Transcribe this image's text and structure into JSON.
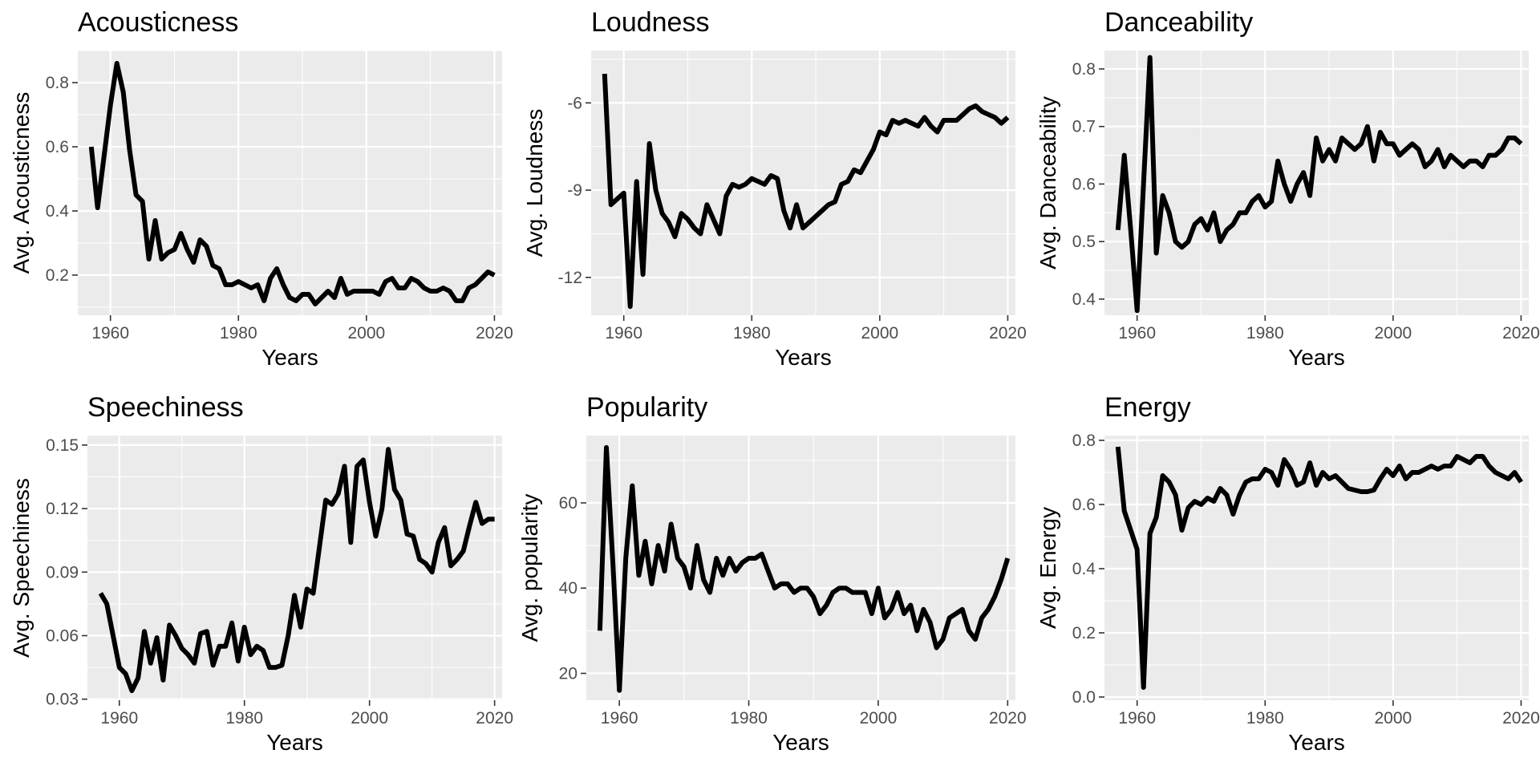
{
  "chart_data": [
    {
      "type": "line",
      "title": "Acousticness",
      "xlabel": "Years",
      "ylabel": "Avg. Acousticness",
      "xlim": [
        1954.9,
        2021.2
      ],
      "ylim": [
        0.075,
        0.9
      ],
      "x_ticks": [
        1960,
        1980,
        2000,
        2020
      ],
      "y_ticks": [
        0.2,
        0.4,
        0.6,
        0.8
      ],
      "y_tick_labels": [
        "0.2",
        "0.4",
        "0.6",
        "0.8"
      ],
      "grid": true,
      "line_color": "#000000",
      "x": [
        1957,
        1958,
        1959,
        1960,
        1961,
        1962,
        1963,
        1964,
        1965,
        1966,
        1967,
        1968,
        1969,
        1970,
        1971,
        1972,
        1973,
        1974,
        1975,
        1976,
        1977,
        1978,
        1979,
        1980,
        1981,
        1982,
        1983,
        1984,
        1985,
        1986,
        1987,
        1988,
        1989,
        1990,
        1991,
        1992,
        1993,
        1994,
        1995,
        1996,
        1997,
        1998,
        1999,
        2000,
        2001,
        2002,
        2003,
        2004,
        2005,
        2006,
        2007,
        2008,
        2009,
        2010,
        2011,
        2012,
        2013,
        2014,
        2015,
        2016,
        2017,
        2018,
        2019,
        2020
      ],
      "y": [
        0.6,
        0.41,
        0.57,
        0.73,
        0.86,
        0.77,
        0.59,
        0.45,
        0.43,
        0.25,
        0.37,
        0.25,
        0.27,
        0.28,
        0.33,
        0.28,
        0.24,
        0.31,
        0.29,
        0.23,
        0.22,
        0.17,
        0.17,
        0.18,
        0.17,
        0.16,
        0.17,
        0.12,
        0.19,
        0.22,
        0.17,
        0.13,
        0.12,
        0.14,
        0.14,
        0.11,
        0.13,
        0.15,
        0.13,
        0.19,
        0.14,
        0.15,
        0.15,
        0.15,
        0.15,
        0.14,
        0.18,
        0.19,
        0.16,
        0.16,
        0.19,
        0.18,
        0.16,
        0.15,
        0.15,
        0.16,
        0.15,
        0.12,
        0.12,
        0.16,
        0.17,
        0.19,
        0.21,
        0.2
      ]
    },
    {
      "type": "line",
      "title": "Loudness",
      "xlabel": "Years",
      "ylabel": "Avg. Loudness",
      "xlim": [
        1954.9,
        2021.2
      ],
      "ylim": [
        -13.3,
        -4.2
      ],
      "x_ticks": [
        1960,
        1980,
        2000,
        2020
      ],
      "y_ticks": [
        -12,
        -9,
        -6
      ],
      "y_tick_labels": [
        "-12",
        "-9",
        "-6"
      ],
      "grid": true,
      "line_color": "#000000",
      "x": [
        1957,
        1958,
        1959,
        1960,
        1961,
        1962,
        1963,
        1964,
        1965,
        1966,
        1967,
        1968,
        1969,
        1970,
        1971,
        1972,
        1973,
        1974,
        1975,
        1976,
        1977,
        1978,
        1979,
        1980,
        1981,
        1982,
        1983,
        1984,
        1985,
        1986,
        1987,
        1988,
        1989,
        1990,
        1991,
        1992,
        1993,
        1994,
        1995,
        1996,
        1997,
        1998,
        1999,
        2000,
        2001,
        2002,
        2003,
        2004,
        2005,
        2006,
        2007,
        2008,
        2009,
        2010,
        2011,
        2012,
        2013,
        2014,
        2015,
        2016,
        2017,
        2018,
        2019,
        2020
      ],
      "y": [
        -5.0,
        -9.5,
        -9.3,
        -9.1,
        -13.0,
        -8.7,
        -11.9,
        -7.4,
        -9.0,
        -9.8,
        -10.1,
        -10.6,
        -9.8,
        -10.0,
        -10.3,
        -10.5,
        -9.5,
        -10.0,
        -10.5,
        -9.2,
        -8.8,
        -8.9,
        -8.8,
        -8.6,
        -8.7,
        -8.8,
        -8.5,
        -8.6,
        -9.7,
        -10.3,
        -9.5,
        -10.3,
        -10.1,
        -9.9,
        -9.7,
        -9.5,
        -9.4,
        -8.8,
        -8.7,
        -8.3,
        -8.4,
        -8.0,
        -7.6,
        -7.0,
        -7.1,
        -6.6,
        -6.7,
        -6.6,
        -6.7,
        -6.8,
        -6.5,
        -6.8,
        -7.0,
        -6.6,
        -6.6,
        -6.6,
        -6.4,
        -6.2,
        -6.1,
        -6.3,
        -6.4,
        -6.5,
        -6.7,
        -6.5
      ]
    },
    {
      "type": "line",
      "title": "Danceability",
      "xlabel": "Years",
      "ylabel": "Avg. Danceability",
      "xlim": [
        1954.9,
        2021.2
      ],
      "ylim": [
        0.372,
        0.832
      ],
      "x_ticks": [
        1960,
        1980,
        2000,
        2020
      ],
      "y_ticks": [
        0.4,
        0.5,
        0.6,
        0.7,
        0.8
      ],
      "y_tick_labels": [
        "0.4",
        "0.5",
        "0.6",
        "0.7",
        "0.8"
      ],
      "grid": true,
      "line_color": "#000000",
      "x": [
        1957,
        1958,
        1959,
        1960,
        1961,
        1962,
        1963,
        1964,
        1965,
        1966,
        1967,
        1968,
        1969,
        1970,
        1971,
        1972,
        1973,
        1974,
        1975,
        1976,
        1977,
        1978,
        1979,
        1980,
        1981,
        1982,
        1983,
        1984,
        1985,
        1986,
        1987,
        1988,
        1989,
        1990,
        1991,
        1992,
        1993,
        1994,
        1995,
        1996,
        1997,
        1998,
        1999,
        2000,
        2001,
        2002,
        2003,
        2004,
        2005,
        2006,
        2007,
        2008,
        2009,
        2010,
        2011,
        2012,
        2013,
        2014,
        2015,
        2016,
        2017,
        2018,
        2019,
        2020
      ],
      "y": [
        0.52,
        0.65,
        0.52,
        0.38,
        0.6,
        0.82,
        0.48,
        0.58,
        0.55,
        0.5,
        0.49,
        0.5,
        0.53,
        0.54,
        0.52,
        0.55,
        0.5,
        0.52,
        0.53,
        0.55,
        0.55,
        0.57,
        0.58,
        0.56,
        0.57,
        0.64,
        0.6,
        0.57,
        0.6,
        0.62,
        0.58,
        0.68,
        0.64,
        0.66,
        0.64,
        0.68,
        0.67,
        0.66,
        0.67,
        0.7,
        0.64,
        0.69,
        0.67,
        0.67,
        0.65,
        0.66,
        0.67,
        0.66,
        0.63,
        0.64,
        0.66,
        0.63,
        0.65,
        0.64,
        0.63,
        0.64,
        0.64,
        0.63,
        0.65,
        0.65,
        0.66,
        0.68,
        0.68,
        0.67
      ]
    },
    {
      "type": "line",
      "title": "Speechiness",
      "xlabel": "Years",
      "ylabel": "Avg. Speechiness",
      "xlim": [
        1954.9,
        2021.2
      ],
      "ylim": [
        0.0295,
        0.1545
      ],
      "x_ticks": [
        1960,
        1980,
        2000,
        2020
      ],
      "y_ticks": [
        0.03,
        0.06,
        0.09,
        0.12,
        0.15
      ],
      "y_tick_labels": [
        "0.03",
        "0.06",
        "0.09",
        "0.12",
        "0.15"
      ],
      "grid": true,
      "line_color": "#000000",
      "x": [
        1957,
        1958,
        1959,
        1960,
        1961,
        1962,
        1963,
        1964,
        1965,
        1966,
        1967,
        1968,
        1969,
        1970,
        1971,
        1972,
        1973,
        1974,
        1975,
        1976,
        1977,
        1978,
        1979,
        1980,
        1981,
        1982,
        1983,
        1984,
        1985,
        1986,
        1987,
        1988,
        1989,
        1990,
        1991,
        1992,
        1993,
        1994,
        1995,
        1996,
        1997,
        1998,
        1999,
        2000,
        2001,
        2002,
        2003,
        2004,
        2005,
        2006,
        2007,
        2008,
        2009,
        2010,
        2011,
        2012,
        2013,
        2014,
        2015,
        2016,
        2017,
        2018,
        2019,
        2020
      ],
      "y": [
        0.08,
        0.075,
        0.06,
        0.045,
        0.042,
        0.034,
        0.04,
        0.062,
        0.047,
        0.059,
        0.039,
        0.065,
        0.06,
        0.054,
        0.051,
        0.047,
        0.061,
        0.062,
        0.046,
        0.055,
        0.055,
        0.066,
        0.048,
        0.064,
        0.051,
        0.055,
        0.053,
        0.045,
        0.045,
        0.046,
        0.06,
        0.079,
        0.064,
        0.082,
        0.08,
        0.102,
        0.124,
        0.122,
        0.127,
        0.14,
        0.104,
        0.14,
        0.143,
        0.123,
        0.107,
        0.12,
        0.148,
        0.129,
        0.124,
        0.108,
        0.107,
        0.096,
        0.094,
        0.09,
        0.104,
        0.111,
        0.093,
        0.096,
        0.1,
        0.112,
        0.123,
        0.113,
        0.115,
        0.115
      ]
    },
    {
      "type": "line",
      "title": "Popularity",
      "xlabel": "Years",
      "ylabel": "Avg. popularity",
      "xlim": [
        1954.9,
        2021.2
      ],
      "ylim": [
        13.7,
        75.8
      ],
      "x_ticks": [
        1960,
        1980,
        2000,
        2020
      ],
      "y_ticks": [
        20,
        40,
        60
      ],
      "y_tick_labels": [
        "20",
        "40",
        "60"
      ],
      "grid": true,
      "line_color": "#000000",
      "x": [
        1957,
        1958,
        1959,
        1960,
        1961,
        1962,
        1963,
        1964,
        1965,
        1966,
        1967,
        1968,
        1969,
        1970,
        1971,
        1972,
        1973,
        1974,
        1975,
        1976,
        1977,
        1978,
        1979,
        1980,
        1981,
        1982,
        1983,
        1984,
        1985,
        1986,
        1987,
        1988,
        1989,
        1990,
        1991,
        1992,
        1993,
        1994,
        1995,
        1996,
        1997,
        1998,
        1999,
        2000,
        2001,
        2002,
        2003,
        2004,
        2005,
        2006,
        2007,
        2008,
        2009,
        2010,
        2011,
        2012,
        2013,
        2014,
        2015,
        2016,
        2017,
        2018,
        2019,
        2020
      ],
      "y": [
        30,
        73,
        46,
        16,
        47,
        64,
        43,
        51,
        41,
        50,
        44,
        55,
        47,
        45,
        40,
        50,
        42,
        39,
        47,
        43,
        47,
        44,
        46,
        47,
        47,
        48,
        44,
        40,
        41,
        41,
        39,
        40,
        40,
        38,
        34,
        36,
        39,
        40,
        40,
        39,
        39,
        39,
        34,
        40,
        33,
        35,
        39,
        34,
        36,
        30,
        35,
        32,
        26,
        28,
        33,
        34,
        35,
        30,
        28,
        33,
        35,
        38,
        42,
        47
      ]
    },
    {
      "type": "line",
      "title": "Energy",
      "xlabel": "Years",
      "ylabel": "Avg. Energy",
      "xlim": [
        1954.9,
        2021.2
      ],
      "ylim": [
        -0.01,
        0.815
      ],
      "x_ticks": [
        1960,
        1980,
        2000,
        2020
      ],
      "y_ticks": [
        0.0,
        0.2,
        0.4,
        0.6,
        0.8
      ],
      "y_tick_labels": [
        "0.0",
        "0.2",
        "0.4",
        "0.6",
        "0.8"
      ],
      "grid": true,
      "line_color": "#000000",
      "x": [
        1957,
        1958,
        1959,
        1960,
        1961,
        1962,
        1963,
        1964,
        1965,
        1966,
        1967,
        1968,
        1969,
        1970,
        1971,
        1972,
        1973,
        1974,
        1975,
        1976,
        1977,
        1978,
        1979,
        1980,
        1981,
        1982,
        1983,
        1984,
        1985,
        1986,
        1987,
        1988,
        1989,
        1990,
        1991,
        1992,
        1993,
        1994,
        1995,
        1996,
        1997,
        1998,
        1999,
        2000,
        2001,
        2002,
        2003,
        2004,
        2005,
        2006,
        2007,
        2008,
        2009,
        2010,
        2011,
        2012,
        2013,
        2014,
        2015,
        2016,
        2017,
        2018,
        2019,
        2020
      ],
      "y": [
        0.78,
        0.58,
        0.52,
        0.46,
        0.03,
        0.51,
        0.56,
        0.69,
        0.67,
        0.63,
        0.52,
        0.59,
        0.61,
        0.6,
        0.62,
        0.61,
        0.65,
        0.63,
        0.57,
        0.63,
        0.67,
        0.68,
        0.68,
        0.71,
        0.7,
        0.66,
        0.74,
        0.71,
        0.66,
        0.67,
        0.73,
        0.66,
        0.7,
        0.68,
        0.69,
        0.67,
        0.65,
        0.645,
        0.64,
        0.64,
        0.645,
        0.68,
        0.71,
        0.69,
        0.72,
        0.68,
        0.7,
        0.7,
        0.71,
        0.72,
        0.71,
        0.72,
        0.72,
        0.75,
        0.74,
        0.73,
        0.75,
        0.75,
        0.72,
        0.7,
        0.69,
        0.68,
        0.7,
        0.67
      ]
    }
  ]
}
